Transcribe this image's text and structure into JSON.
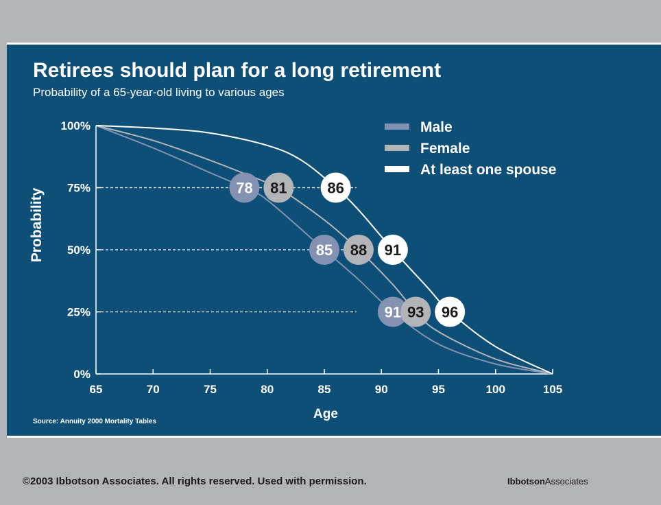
{
  "slide": {
    "title": "Retirees should plan for a long retirement",
    "subtitle": "Probability of a 65-year-old living to various ages",
    "source": "Source: Annuity 2000 Mortality Tables"
  },
  "footer": {
    "copyright": "©2003 Ibbotson Associates. All rights reserved. Used with permission.",
    "brand_bold": "Ibbotson",
    "brand_regular": "Associates"
  },
  "colors": {
    "panel": "#0e4f78",
    "background": "#b2b4b7",
    "male": "#8391b2",
    "female": "#b2b4b7",
    "spouse": "#ffffff"
  },
  "chart_data": {
    "type": "line",
    "xlabel": "Age",
    "ylabel": "Probability",
    "xlim": [
      65,
      105
    ],
    "ylim": [
      0,
      100
    ],
    "x_ticks": [
      "65",
      "70",
      "75",
      "80",
      "85",
      "90",
      "95",
      "100",
      "105"
    ],
    "y_ticks": [
      "0%",
      "25%",
      "50%",
      "75%",
      "100%"
    ],
    "legend_position": "top-right",
    "series": [
      {
        "name": "Male",
        "color": "#8391b2",
        "x": [
          65,
          70,
          75,
          78,
          80,
          85,
          88,
          91,
          95,
          100,
          105
        ],
        "y": [
          100,
          91,
          81,
          75,
          70,
          50,
          38,
          25,
          12,
          4,
          0
        ]
      },
      {
        "name": "Female",
        "color": "#b2b4b7",
        "x": [
          65,
          70,
          75,
          80,
          81,
          85,
          88,
          91,
          93,
          95,
          100,
          105
        ],
        "y": [
          100,
          94,
          86,
          77,
          75,
          62,
          50,
          36,
          25,
          17,
          6,
          0
        ]
      },
      {
        "name": "At least one spouse",
        "color": "#ffffff",
        "x": [
          65,
          70,
          75,
          80,
          83,
          86,
          88,
          91,
          94,
          96,
          100,
          105
        ],
        "y": [
          100,
          99,
          97,
          92,
          86,
          75,
          66,
          50,
          35,
          25,
          11,
          0
        ]
      }
    ],
    "annotations": [
      {
        "series": "Male",
        "label": "78",
        "x": 78,
        "y": 75
      },
      {
        "series": "Female",
        "label": "81",
        "x": 81,
        "y": 75
      },
      {
        "series": "At least one spouse",
        "label": "86",
        "x": 86,
        "y": 75
      },
      {
        "series": "Male",
        "label": "85",
        "x": 85,
        "y": 50
      },
      {
        "series": "Female",
        "label": "88",
        "x": 88,
        "y": 50
      },
      {
        "series": "At least one spouse",
        "label": "91",
        "x": 91,
        "y": 50
      },
      {
        "series": "Male",
        "label": "91",
        "x": 91,
        "y": 25
      },
      {
        "series": "Female",
        "label": "93",
        "x": 93,
        "y": 25
      },
      {
        "series": "At least one spouse",
        "label": "96",
        "x": 96,
        "y": 25
      }
    ],
    "reference_lines": [
      25,
      50,
      75
    ]
  }
}
